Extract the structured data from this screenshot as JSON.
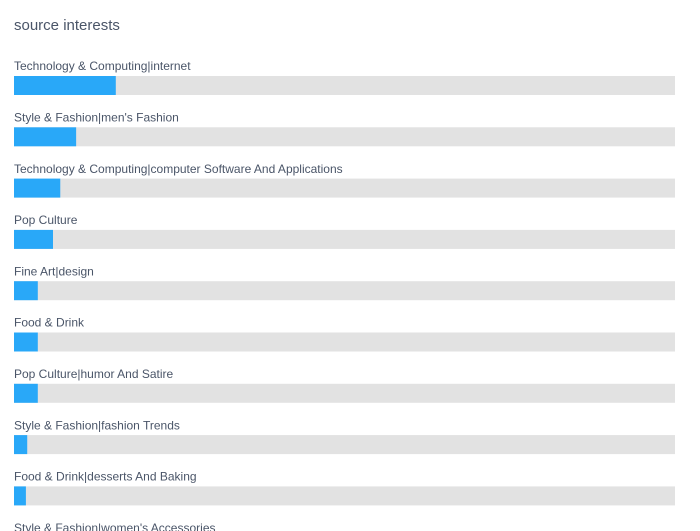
{
  "chart_data": {
    "type": "bar",
    "orientation": "horizontal",
    "title": "source interests",
    "categories": [
      "Technology & Computing|internet",
      "Style & Fashion|men's Fashion",
      "Technology & Computing|computer Software And Applications",
      "Pop Culture",
      "Fine Art|design",
      "Food & Drink",
      "Pop Culture|humor And Satire",
      "Style & Fashion|fashion Trends",
      "Food & Drink|desserts And Baking",
      "Style & Fashion|women's Accessories"
    ],
    "values": [
      15.4,
      9.4,
      7.0,
      5.9,
      3.6,
      3.6,
      3.6,
      2.0,
      1.8,
      null
    ],
    "color": "#29a8f8",
    "track_color": "#e2e2e2",
    "xlim": [
      0,
      100
    ]
  }
}
